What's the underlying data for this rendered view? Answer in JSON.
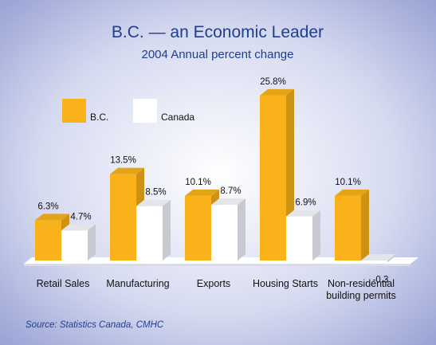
{
  "chart_data": {
    "type": "bar",
    "title": "B.C. — an Economic Leader",
    "subtitle": "2004 Annual percent change",
    "categories": [
      [
        "Retail Sales"
      ],
      [
        "Manufacturing"
      ],
      [
        "Exports"
      ],
      [
        "Housing Starts"
      ],
      [
        "Non-residential",
        "building permits"
      ]
    ],
    "series": [
      {
        "name": "B.C.",
        "color": "#f9b21a",
        "values": [
          6.3,
          13.5,
          10.1,
          25.8,
          10.1
        ],
        "labels": [
          "6.3%",
          "13.5%",
          "10.1%",
          "25.8%",
          "10.1%"
        ]
      },
      {
        "name": "Canada",
        "color": "#ffffff",
        "values": [
          4.7,
          8.5,
          8.7,
          6.9,
          -0.3
        ],
        "labels": [
          "4.7%",
          "8.5%",
          "8.7%",
          "6.9%",
          "-0.3"
        ]
      }
    ],
    "legend_position": "top-left",
    "source": "Source: Statistics Canada, CMHC"
  }
}
